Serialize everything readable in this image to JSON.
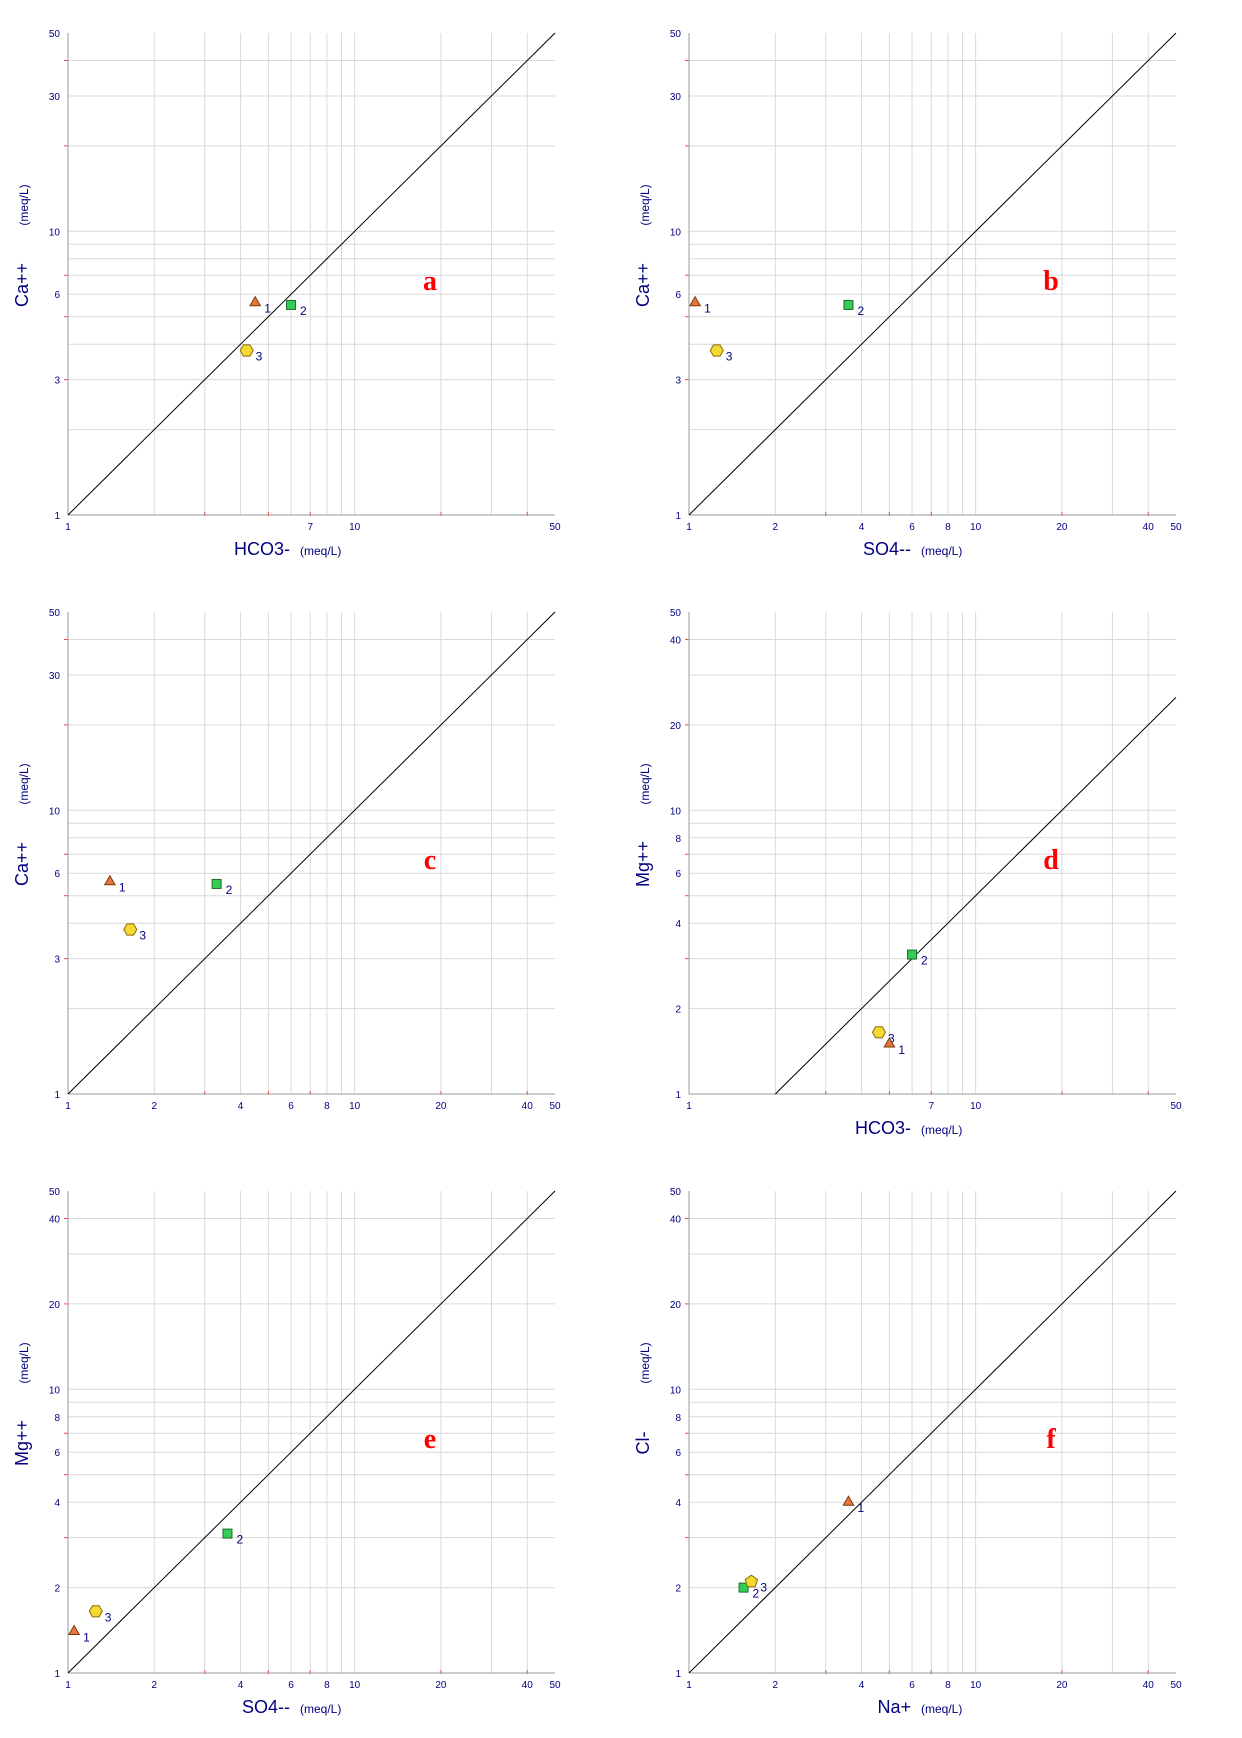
{
  "chart_data": [
    {
      "type": "scatter",
      "panel_label": "a",
      "xlabel": "HCO3-",
      "xunit": "(meq/L)",
      "ylabel": "Ca++",
      "yunit": "(meq/L)",
      "xlim": [
        1,
        50
      ],
      "ylim": [
        1,
        50
      ],
      "scale": "log",
      "xticks": [
        "1",
        "7",
        "10",
        "50"
      ],
      "yticks": [
        "1",
        "3",
        "6",
        "10",
        "30",
        "50"
      ],
      "reference_line": "1:1",
      "points": [
        {
          "label": "1",
          "x": 4.5,
          "y": 5.6,
          "marker": "triangle",
          "color": "#e8763a"
        },
        {
          "label": "2",
          "x": 6.0,
          "y": 5.5,
          "marker": "square",
          "color": "#33cc55"
        },
        {
          "label": "3",
          "x": 4.2,
          "y": 3.8,
          "marker": "hexagon",
          "color": "#f5d932"
        }
      ]
    },
    {
      "type": "scatter",
      "panel_label": "b",
      "xlabel": "SO4--",
      "xunit": "(meq/L)",
      "ylabel": "Ca++",
      "yunit": "(meq/L)",
      "xlim": [
        1,
        50
      ],
      "ylim": [
        1,
        50
      ],
      "scale": "log",
      "xticks": [
        "1",
        "2",
        "4",
        "6",
        "8",
        "10",
        "20",
        "40",
        "50"
      ],
      "yticks": [
        "1",
        "3",
        "6",
        "10",
        "30",
        "50"
      ],
      "reference_line": "1:1",
      "points": [
        {
          "label": "1",
          "x": 1.05,
          "y": 5.6,
          "marker": "triangle",
          "color": "#e8763a"
        },
        {
          "label": "2",
          "x": 3.6,
          "y": 5.5,
          "marker": "square",
          "color": "#33cc55"
        },
        {
          "label": "3",
          "x": 1.25,
          "y": 3.8,
          "marker": "hexagon",
          "color": "#f5d932"
        }
      ]
    },
    {
      "type": "scatter",
      "panel_label": "c",
      "xlabel": "",
      "xunit": "",
      "ylabel": "Ca++",
      "yunit": "(meq/L)",
      "xlim": [
        1,
        50
      ],
      "ylim": [
        1,
        50
      ],
      "scale": "log",
      "xticks": [
        "1",
        "2",
        "4",
        "6",
        "8",
        "10",
        "20",
        "40",
        "50"
      ],
      "yticks": [
        "1",
        "3",
        "6",
        "10",
        "30",
        "50"
      ],
      "reference_line": "1:1",
      "points": [
        {
          "label": "1",
          "x": 1.4,
          "y": 5.6,
          "marker": "triangle",
          "color": "#e8763a"
        },
        {
          "label": "2",
          "x": 3.3,
          "y": 5.5,
          "marker": "square",
          "color": "#33cc55"
        },
        {
          "label": "3",
          "x": 1.65,
          "y": 3.8,
          "marker": "hexagon",
          "color": "#f5d932"
        }
      ]
    },
    {
      "type": "scatter",
      "panel_label": "d",
      "xlabel": "HCO3-",
      "xunit": "(meq/L)",
      "ylabel": "Mg++",
      "yunit": "(meq/L)",
      "xlim": [
        1,
        50
      ],
      "ylim": [
        1,
        50
      ],
      "scale": "log",
      "xticks": [
        "1",
        "7",
        "10",
        "50"
      ],
      "yticks": [
        "1",
        "2",
        "4",
        "6",
        "8",
        "10",
        "20",
        "40",
        "50"
      ],
      "reference_line": "1:2",
      "points": [
        {
          "label": "2",
          "x": 6.0,
          "y": 3.1,
          "marker": "square",
          "color": "#33cc55"
        },
        {
          "label": "3",
          "x": 4.6,
          "y": 1.65,
          "marker": "hexagon",
          "color": "#f5d932"
        },
        {
          "label": "1",
          "x": 5.0,
          "y": 1.5,
          "marker": "triangle",
          "color": "#e8763a"
        }
      ]
    },
    {
      "type": "scatter",
      "panel_label": "e",
      "xlabel": "SO4--",
      "xunit": "(meq/L)",
      "ylabel": "Mg++",
      "yunit": "(meq/L)",
      "xlim": [
        1,
        50
      ],
      "ylim": [
        1,
        50
      ],
      "scale": "log",
      "xticks": [
        "1",
        "2",
        "4",
        "6",
        "8",
        "10",
        "20",
        "40",
        "50"
      ],
      "yticks": [
        "1",
        "2",
        "4",
        "6",
        "8",
        "10",
        "20",
        "40",
        "50"
      ],
      "reference_line": "1:1",
      "points": [
        {
          "label": "2",
          "x": 3.6,
          "y": 3.1,
          "marker": "square",
          "color": "#33cc55"
        },
        {
          "label": "3",
          "x": 1.25,
          "y": 1.65,
          "marker": "hexagon",
          "color": "#f5d932"
        },
        {
          "label": "1",
          "x": 1.05,
          "y": 1.4,
          "marker": "triangle",
          "color": "#e8763a"
        }
      ]
    },
    {
      "type": "scatter",
      "panel_label": "f",
      "xlabel": "Na+",
      "xunit": "(meq/L)",
      "ylabel": "Cl-",
      "yunit": "(meq/L)",
      "xlim": [
        1,
        50
      ],
      "ylim": [
        1,
        50
      ],
      "scale": "log",
      "xticks": [
        "1",
        "2",
        "4",
        "6",
        "8",
        "10",
        "20",
        "40",
        "50"
      ],
      "yticks": [
        "1",
        "2",
        "4",
        "6",
        "8",
        "10",
        "20",
        "40",
        "50"
      ],
      "reference_line": "1:1",
      "points": [
        {
          "label": "1",
          "x": 3.6,
          "y": 4.0,
          "marker": "triangle",
          "color": "#e8763a"
        },
        {
          "label": "2",
          "x": 1.55,
          "y": 2.0,
          "marker": "square",
          "color": "#33cc55"
        },
        {
          "label": "3",
          "x": 1.65,
          "y": 2.1,
          "marker": "pentagon",
          "color": "#f5d932"
        }
      ]
    }
  ]
}
